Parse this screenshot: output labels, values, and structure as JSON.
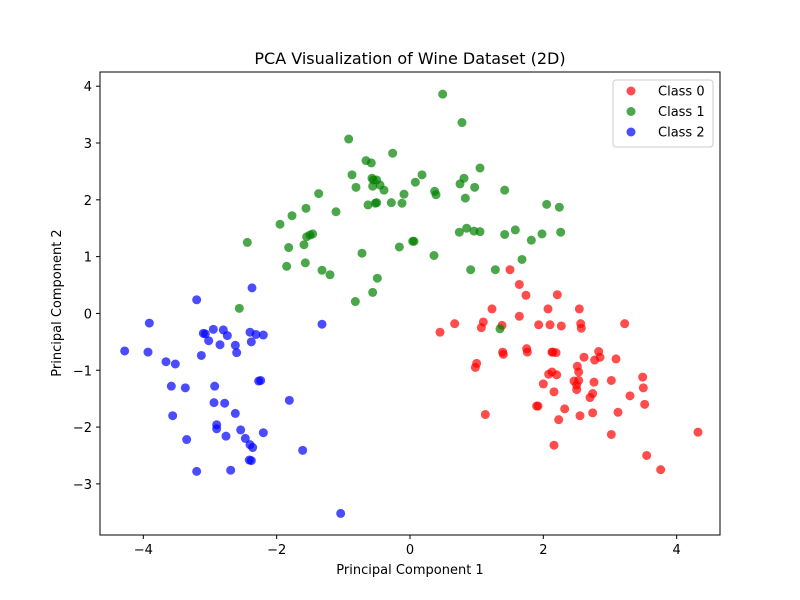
{
  "chart_data": {
    "type": "scatter",
    "title": "PCA Visualization of Wine Dataset (2D)",
    "xlabel": "Principal Component 1",
    "ylabel": "Principal Component 2",
    "xlim": [
      -4.65,
      4.65
    ],
    "ylim": [
      -3.9,
      4.25
    ],
    "xticks": [
      -4,
      -2,
      0,
      2,
      4
    ],
    "yticks": [
      -3,
      -2,
      -1,
      0,
      1,
      2,
      3,
      4
    ],
    "xtick_labels": [
      "−4",
      "−2",
      "0",
      "2",
      "4"
    ],
    "ytick_labels": [
      "−3",
      "−2",
      "−1",
      "0",
      "1",
      "2",
      "3",
      "4"
    ],
    "grid": false,
    "legend_position": "top-right",
    "series": [
      {
        "name": "Class 0",
        "color": "#ff0000",
        "points": [
          [
            0.45,
            -0.33
          ],
          [
            0.67,
            -0.18
          ],
          [
            0.98,
            -0.95
          ],
          [
            1.0,
            -0.88
          ],
          [
            1.07,
            -0.25
          ],
          [
            1.1,
            -0.15
          ],
          [
            1.13,
            -1.78
          ],
          [
            1.23,
            0.08
          ],
          [
            1.38,
            -0.21
          ],
          [
            1.39,
            -0.68
          ],
          [
            1.4,
            -0.72
          ],
          [
            1.5,
            0.77
          ],
          [
            1.64,
            0.51
          ],
          [
            1.64,
            -0.05
          ],
          [
            1.74,
            0.32
          ],
          [
            1.75,
            -0.62
          ],
          [
            1.76,
            -0.68
          ],
          [
            1.9,
            -1.63
          ],
          [
            1.92,
            -1.63
          ],
          [
            1.93,
            -0.2
          ],
          [
            2.0,
            -1.24
          ],
          [
            2.07,
            0.08
          ],
          [
            2.08,
            -1.07
          ],
          [
            2.1,
            -0.2
          ],
          [
            2.13,
            -1.03
          ],
          [
            2.13,
            -0.68
          ],
          [
            2.14,
            -0.68
          ],
          [
            2.16,
            -2.32
          ],
          [
            2.16,
            -1.38
          ],
          [
            2.19,
            -0.69
          ],
          [
            2.2,
            -1.08
          ],
          [
            2.21,
            0.33
          ],
          [
            2.23,
            -1.87
          ],
          [
            2.27,
            -0.22
          ],
          [
            2.32,
            -1.68
          ],
          [
            2.46,
            -1.19
          ],
          [
            2.5,
            -1.26
          ],
          [
            2.5,
            -1.34
          ],
          [
            2.51,
            -0.93
          ],
          [
            2.53,
            -1.18
          ],
          [
            2.53,
            -1.03
          ],
          [
            2.54,
            0.08
          ],
          [
            2.55,
            -1.8
          ],
          [
            2.56,
            -0.18
          ],
          [
            2.57,
            -0.26
          ],
          [
            2.61,
            -0.77
          ],
          [
            2.7,
            -1.48
          ],
          [
            2.74,
            -1.41
          ],
          [
            2.74,
            -1.75
          ],
          [
            2.76,
            -1.21
          ],
          [
            2.77,
            -0.82
          ],
          [
            2.83,
            -0.67
          ],
          [
            2.85,
            -0.77
          ],
          [
            3.02,
            -1.18
          ],
          [
            3.02,
            -2.13
          ],
          [
            3.09,
            -0.8
          ],
          [
            3.12,
            -1.74
          ],
          [
            3.22,
            -0.18
          ],
          [
            3.3,
            -1.45
          ],
          [
            3.49,
            -1.12
          ],
          [
            3.5,
            -1.31
          ],
          [
            3.52,
            -1.6
          ],
          [
            3.55,
            -2.5
          ],
          [
            3.76,
            -2.75
          ],
          [
            4.32,
            -2.09
          ]
        ]
      },
      {
        "name": "Class 1",
        "color": "#008000",
        "points": [
          [
            -2.56,
            0.09
          ],
          [
            -2.44,
            1.25
          ],
          [
            -1.95,
            1.57
          ],
          [
            -1.85,
            0.83
          ],
          [
            -1.82,
            1.16
          ],
          [
            -1.77,
            1.72
          ],
          [
            -1.59,
            1.21
          ],
          [
            -1.57,
            0.89
          ],
          [
            -1.56,
            1.85
          ],
          [
            -1.55,
            1.35
          ],
          [
            -1.5,
            1.38
          ],
          [
            -1.46,
            1.4
          ],
          [
            -1.37,
            2.11
          ],
          [
            -1.32,
            0.76
          ],
          [
            -1.2,
            0.68
          ],
          [
            -1.11,
            1.79
          ],
          [
            -0.92,
            3.07
          ],
          [
            -0.87,
            2.44
          ],
          [
            -0.82,
            0.21
          ],
          [
            -0.81,
            2.22
          ],
          [
            -0.72,
            1.06
          ],
          [
            -0.66,
            2.69
          ],
          [
            -0.63,
            1.91
          ],
          [
            -0.58,
            2.65
          ],
          [
            -0.57,
            2.38
          ],
          [
            -0.56,
            0.37
          ],
          [
            -0.56,
            2.24
          ],
          [
            -0.55,
            2.35
          ],
          [
            -0.52,
            1.94
          ],
          [
            -0.5,
            1.95
          ],
          [
            -0.5,
            2.35
          ],
          [
            -0.49,
            0.62
          ],
          [
            -0.45,
            2.26
          ],
          [
            -0.39,
            2.17
          ],
          [
            -0.28,
            1.95
          ],
          [
            -0.26,
            2.82
          ],
          [
            -0.16,
            1.17
          ],
          [
            -0.12,
            1.94
          ],
          [
            -0.09,
            2.1
          ],
          [
            0.04,
            1.27
          ],
          [
            0.06,
            1.27
          ],
          [
            0.08,
            2.31
          ],
          [
            0.18,
            2.44
          ],
          [
            0.36,
            1.02
          ],
          [
            0.37,
            2.15
          ],
          [
            0.39,
            2.09
          ],
          [
            0.49,
            3.86
          ],
          [
            0.74,
            1.43
          ],
          [
            0.75,
            2.28
          ],
          [
            0.78,
            3.36
          ],
          [
            0.81,
            2.38
          ],
          [
            0.83,
            2.03
          ],
          [
            0.85,
            1.5
          ],
          [
            0.91,
            0.77
          ],
          [
            0.96,
            1.45
          ],
          [
            0.97,
            2.22
          ],
          [
            1.05,
            2.56
          ],
          [
            1.05,
            1.44
          ],
          [
            1.28,
            0.77
          ],
          [
            1.35,
            -0.27
          ],
          [
            1.42,
            2.17
          ],
          [
            1.42,
            1.39
          ],
          [
            1.58,
            1.47
          ],
          [
            1.68,
            0.95
          ],
          [
            1.82,
            1.29
          ],
          [
            1.98,
            1.4
          ],
          [
            2.05,
            1.92
          ],
          [
            2.24,
            1.87
          ],
          [
            2.26,
            1.43
          ]
        ]
      },
      {
        "name": "Class 2",
        "color": "#0000ff",
        "points": [
          [
            -4.28,
            -0.66
          ],
          [
            -3.93,
            -0.68
          ],
          [
            -3.91,
            -0.17
          ],
          [
            -3.66,
            -0.85
          ],
          [
            -3.58,
            -1.28
          ],
          [
            -3.56,
            -1.8
          ],
          [
            -3.52,
            -0.89
          ],
          [
            -3.37,
            -1.31
          ],
          [
            -3.35,
            -2.22
          ],
          [
            -3.2,
            0.24
          ],
          [
            -3.2,
            -2.78
          ],
          [
            -3.13,
            -0.74
          ],
          [
            -3.1,
            -0.35
          ],
          [
            -3.07,
            -0.36
          ],
          [
            -3.02,
            -0.48
          ],
          [
            -2.95,
            -0.28
          ],
          [
            -2.94,
            -1.57
          ],
          [
            -2.93,
            -1.28
          ],
          [
            -2.9,
            -1.96
          ],
          [
            -2.9,
            -2.03
          ],
          [
            -2.85,
            -0.55
          ],
          [
            -2.8,
            -0.29
          ],
          [
            -2.78,
            -1.58
          ],
          [
            -2.76,
            -2.16
          ],
          [
            -2.74,
            -0.39
          ],
          [
            -2.69,
            -2.76
          ],
          [
            -2.62,
            -0.56
          ],
          [
            -2.62,
            -1.76
          ],
          [
            -2.6,
            -0.69
          ],
          [
            -2.54,
            -2.05
          ],
          [
            -2.47,
            -2.2
          ],
          [
            -2.41,
            -2.58
          ],
          [
            -2.4,
            -2.31
          ],
          [
            -2.4,
            -0.33
          ],
          [
            -2.38,
            -2.59
          ],
          [
            -2.38,
            -0.5
          ],
          [
            -2.37,
            0.45
          ],
          [
            -2.36,
            -2.36
          ],
          [
            -2.31,
            -0.37
          ],
          [
            -2.27,
            -1.19
          ],
          [
            -2.24,
            -1.18
          ],
          [
            -2.2,
            -2.1
          ],
          [
            -2.2,
            -0.38
          ],
          [
            -1.81,
            -1.53
          ],
          [
            -1.61,
            -2.41
          ],
          [
            -1.32,
            -0.19
          ],
          [
            -1.04,
            -3.52
          ]
        ]
      }
    ]
  }
}
